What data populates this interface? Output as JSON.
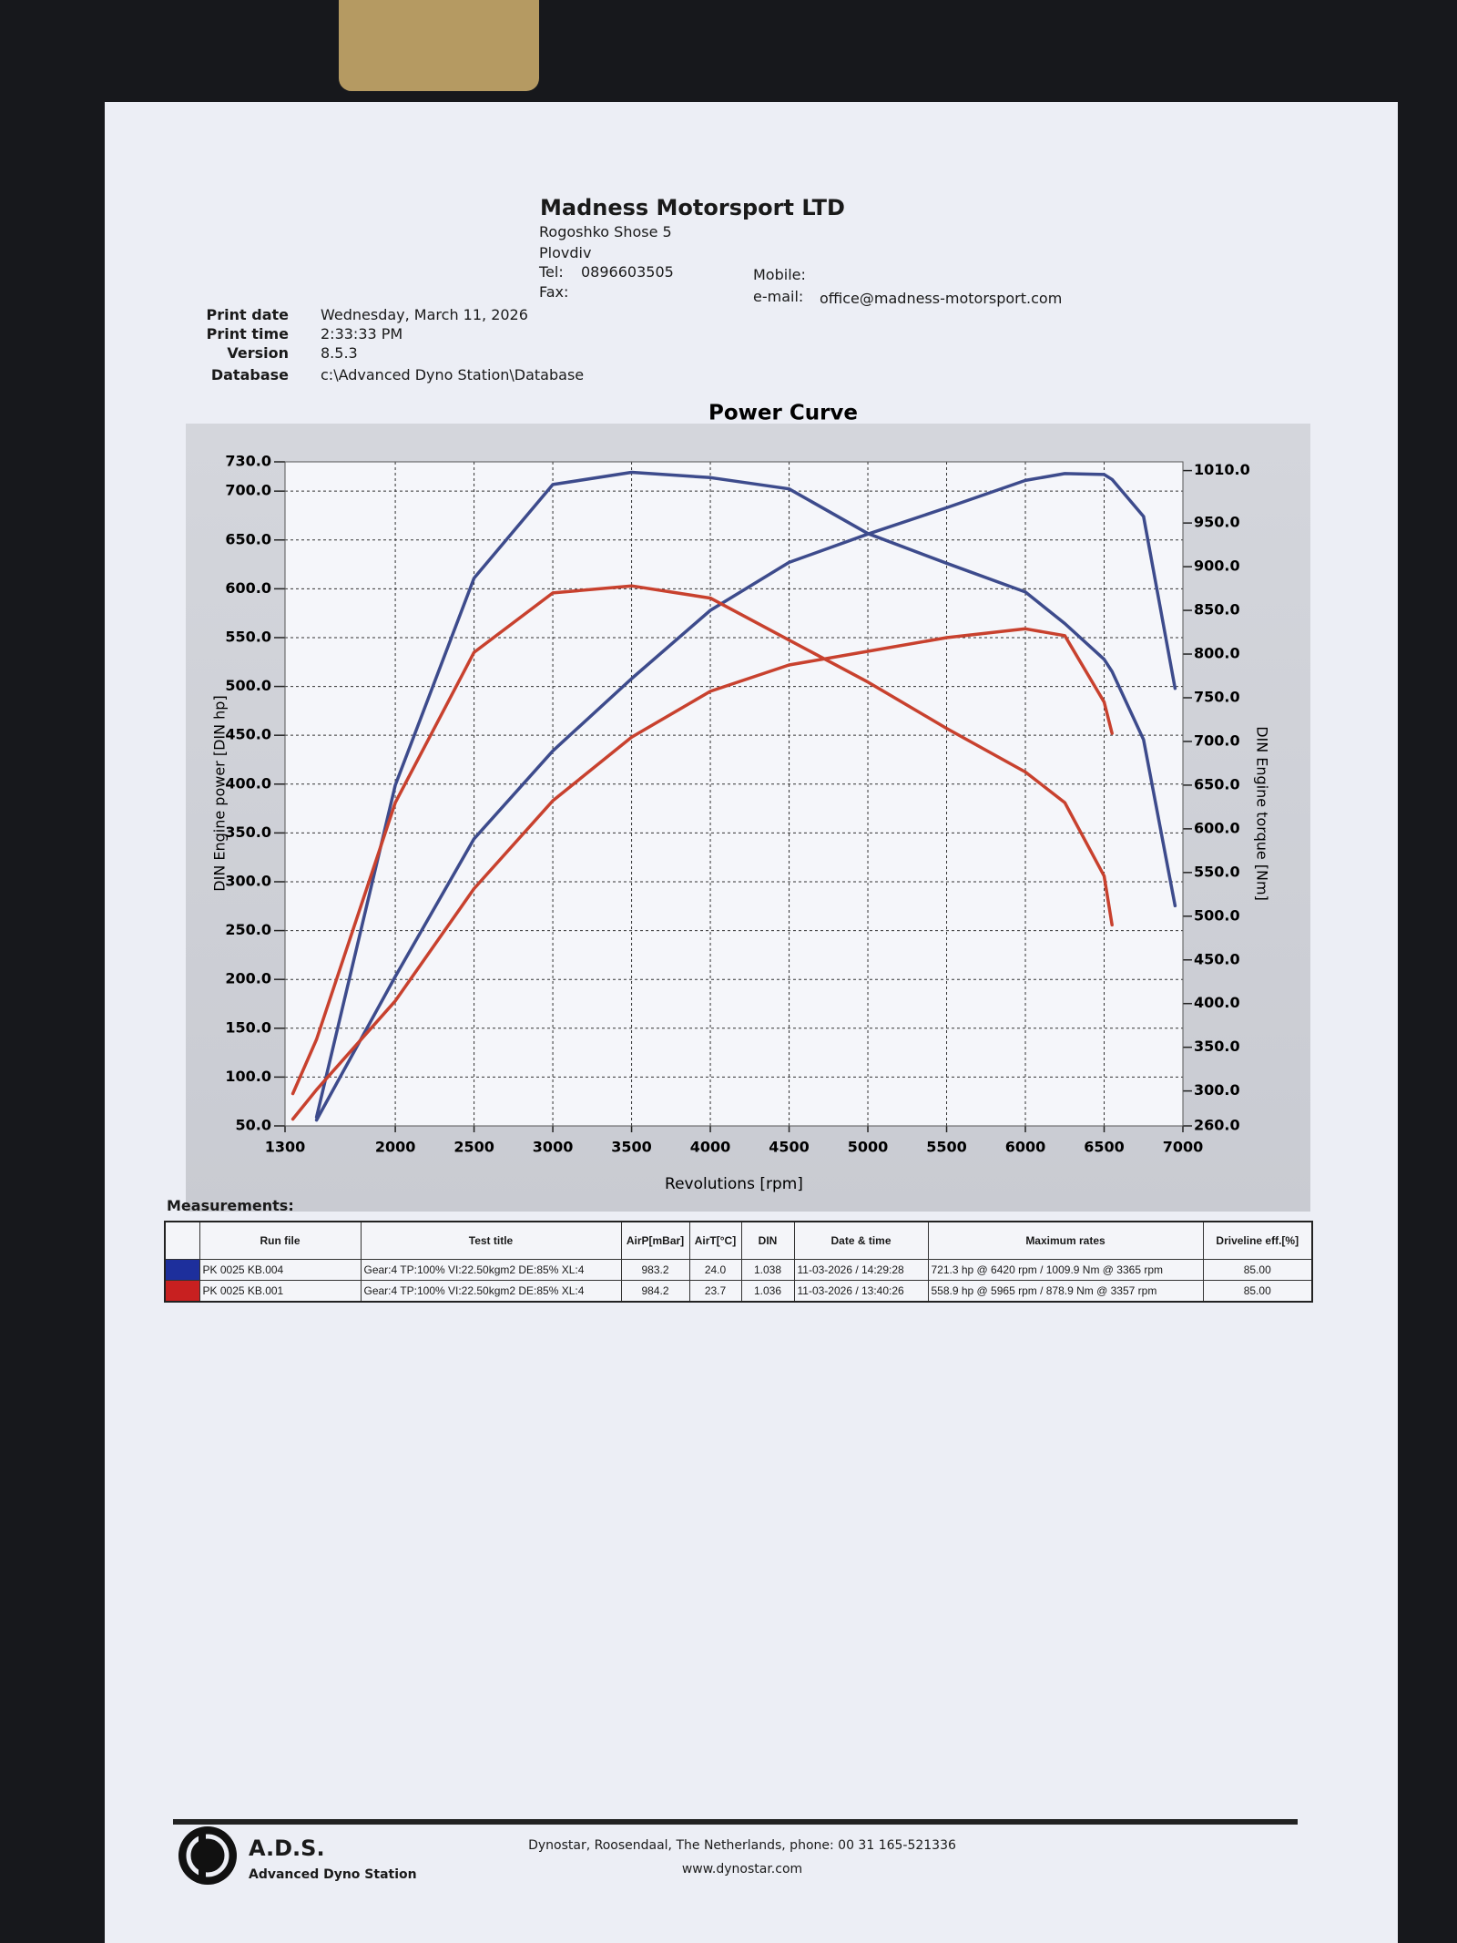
{
  "header": {
    "company": "Madness Motorsport LTD",
    "address": [
      "Rogoshko Shose 5",
      "Plovdiv"
    ],
    "tel_label": "Tel:",
    "tel": "0896603505",
    "fax_label": "Fax:",
    "mobile_label": "Mobile:",
    "email_label": "e-mail:",
    "email": "office@madness-motorsport.com"
  },
  "print_info": [
    {
      "label": "Print date",
      "value": "Wednesday, March 11, 2026"
    },
    {
      "label": "Print time",
      "value": "2:33:33 PM"
    },
    {
      "label": "Version",
      "value": "8.5.3"
    },
    {
      "label": "Database",
      "value": "c:\\Advanced Dyno Station\\Database"
    }
  ],
  "chart_data": {
    "type": "line",
    "title": "Power Curve",
    "x_label": "Revolutions [rpm]",
    "y_label": "DIN Engine power [DIN hp]",
    "y2_label": "DIN Engine torque [Nm]",
    "x": [
      1350,
      1500,
      2000,
      2500,
      3000,
      3500,
      4000,
      4500,
      5000,
      5500,
      6000,
      6250,
      6500,
      6550,
      6750,
      6950
    ],
    "series": [
      {
        "color": "#3d4b8c",
        "values": [
          null,
          56,
          203,
          344,
          434,
          508,
          578,
          627,
          656,
          683,
          711,
          718,
          717,
          712,
          674,
          498
        ]
      },
      {
        "color": "#3d4b8c",
        "axis": "y2",
        "values": [
          null,
          270,
          650,
          887,
          994,
          1008,
          1002,
          989,
          938,
          904,
          871,
          835,
          794,
          780,
          702,
          512
        ]
      },
      {
        "color": "#c8412e",
        "values": [
          57,
          87,
          178,
          293,
          383,
          448,
          495,
          522,
          536,
          550,
          559,
          552,
          484,
          452,
          null,
          null
        ]
      },
      {
        "color": "#c8412e",
        "axis": "y2",
        "values": [
          297,
          359,
          630,
          802,
          870,
          878,
          864,
          816,
          768,
          715,
          665,
          630,
          546,
          490,
          null,
          null
        ]
      }
    ],
    "xlim": [
      1300,
      7000
    ],
    "xticks": [
      1300,
      2000,
      2500,
      3000,
      3500,
      4000,
      4500,
      5000,
      5500,
      6000,
      6500,
      7000
    ],
    "ylim": [
      50,
      730
    ],
    "yticks": [
      {
        "value": 50,
        "label": "50.0"
      },
      {
        "value": 100,
        "label": "100.0"
      },
      {
        "value": 150,
        "label": "150.0"
      },
      {
        "value": 200,
        "label": "200.0"
      },
      {
        "value": 250,
        "label": "250.0"
      },
      {
        "value": 300,
        "label": "300.0"
      },
      {
        "value": 350,
        "label": "350.0"
      },
      {
        "value": 400,
        "label": "400.0"
      },
      {
        "value": 450,
        "label": "450.0"
      },
      {
        "value": 500,
        "label": "500.0"
      },
      {
        "value": 550,
        "label": "550.0"
      },
      {
        "value": 600,
        "label": "600.0"
      },
      {
        "value": 650,
        "label": "650.0"
      },
      {
        "value": 700,
        "label": "700.0"
      },
      {
        "value": 730,
        "label": "730.0"
      }
    ],
    "y2lim": [
      260,
      1020
    ],
    "y2ticks": [
      {
        "value": 260,
        "label": "260.0"
      },
      {
        "value": 300,
        "label": "300.0"
      },
      {
        "value": 350,
        "label": "350.0"
      },
      {
        "value": 400,
        "label": "400.0"
      },
      {
        "value": 450,
        "label": "450.0"
      },
      {
        "value": 500,
        "label": "500.0"
      },
      {
        "value": 550,
        "label": "550.0"
      },
      {
        "value": 600,
        "label": "600.0"
      },
      {
        "value": 650,
        "label": "650.0"
      },
      {
        "value": 700,
        "label": "700.0"
      },
      {
        "value": 750,
        "label": "750.0"
      },
      {
        "value": 800,
        "label": "800.0"
      },
      {
        "value": 850,
        "label": "850.0"
      },
      {
        "value": 900,
        "label": "900.0"
      },
      {
        "value": 950,
        "label": "950.0"
      },
      {
        "value": 1010,
        "label": "1010.0"
      }
    ],
    "grid": true
  },
  "measurements": {
    "title": "Measurements:",
    "columns": [
      "Run file",
      "Test title",
      "AirP[mBar]",
      "AirT[°C]",
      "DIN",
      "Date & time",
      "Maximum rates",
      "Driveline eff.[%]"
    ],
    "rows": [
      {
        "color": "#1d2f9c",
        "cells": [
          "PK 0025 KB.004",
          "Gear:4 TP:100% VI:22.50kgm2 DE:85% XL:4",
          "983.2",
          "24.0",
          "1.038",
          "11-03-2026 / 14:29:28",
          "721.3 hp @ 6420 rpm / 1009.9 Nm @ 3365 rpm",
          "85.00"
        ]
      },
      {
        "color": "#c82020",
        "cells": [
          "PK 0025 KB.001",
          "Gear:4 TP:100% VI:22.50kgm2 DE:85% XL:4",
          "984.2",
          "23.7",
          "1.036",
          "11-03-2026 / 13:40:26",
          "558.9 hp @ 5965 rpm / 878.9 Nm @ 3357 rpm",
          "85.00"
        ]
      }
    ]
  },
  "footer": {
    "logo": "A.D.S.",
    "logo_subtitle": "Advanced Dyno Station",
    "address": "Dynostar, Roosendaal, The Netherlands, phone: 00 31 165-521336",
    "website": "www.dynostar.com"
  }
}
